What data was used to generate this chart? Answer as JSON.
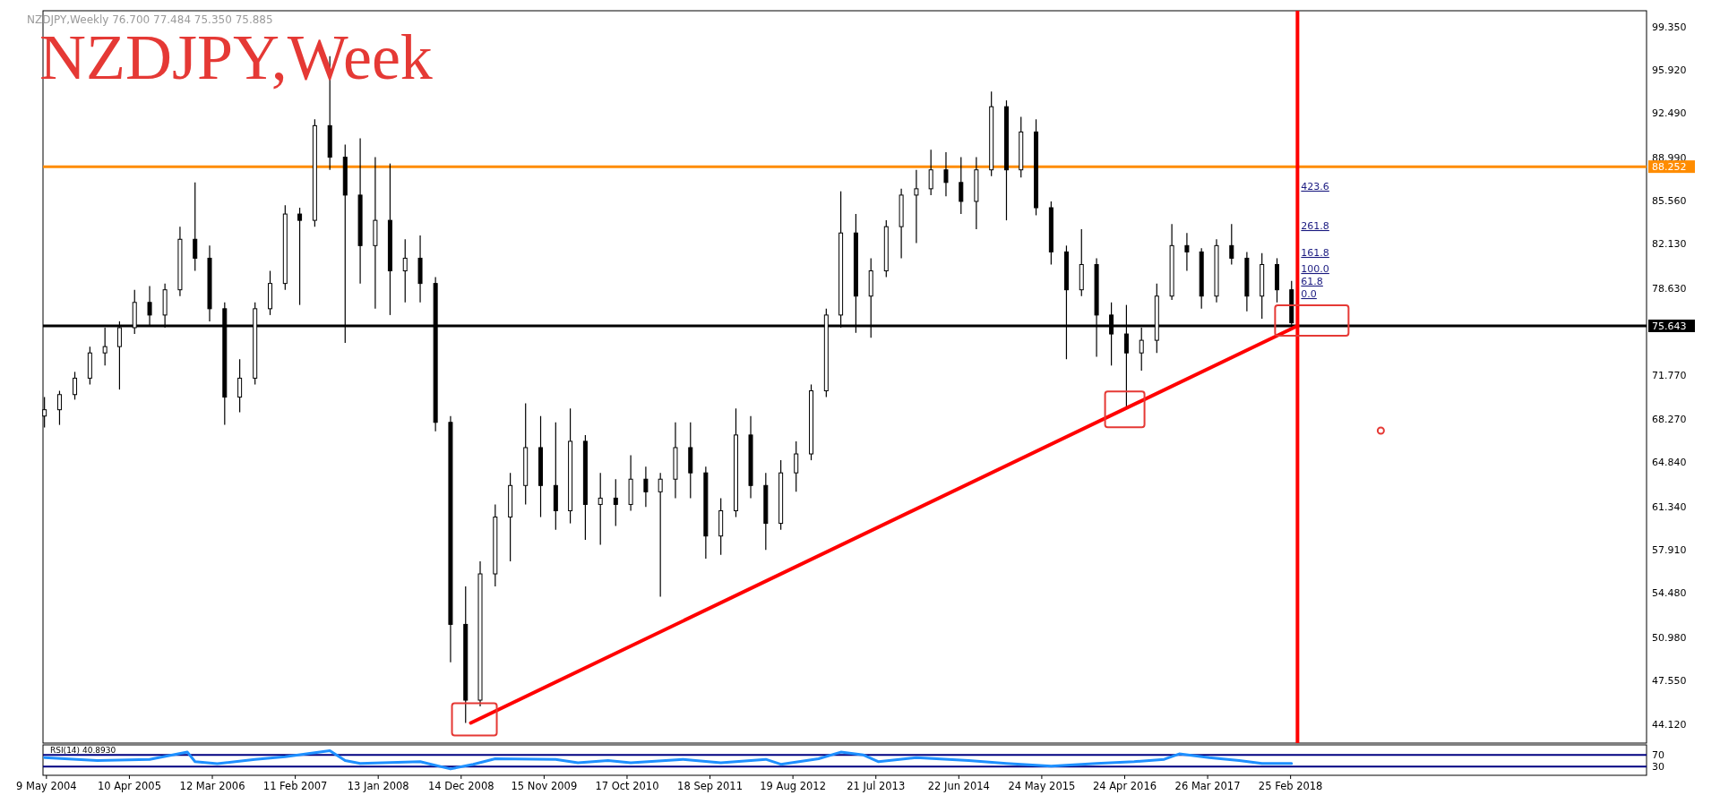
{
  "chart_data": [
    {
      "type": "candlestick",
      "title": "NZDJPY,Week",
      "subtitle": "NZDJPY,Weekly 76.700 77.484 75.350 75.885",
      "tick_labels": "y",
      "xlim": [
        "2004-04-25",
        "2022-02-06"
      ],
      "ylim": [
        42.6,
        100.6
      ],
      "yticks": [
        {
          "value": 44.12,
          "label": "44.120"
        },
        {
          "value": 47.55,
          "label": "47.550"
        },
        {
          "value": 50.98,
          "label": "50.980"
        },
        {
          "value": 54.48,
          "label": "54.480"
        },
        {
          "value": 57.91,
          "label": "57.910"
        },
        {
          "value": 61.34,
          "label": "61.340"
        },
        {
          "value": 64.84,
          "label": "64.840"
        },
        {
          "value": 68.27,
          "label": "68.270"
        },
        {
          "value": 71.77,
          "label": "71.770"
        },
        {
          "value": 78.63,
          "label": "78.630"
        },
        {
          "value": 82.13,
          "label": "82.130"
        },
        {
          "value": 85.56,
          "label": "85.560"
        },
        {
          "value": 88.99,
          "label": "88.990"
        },
        {
          "value": 92.49,
          "label": "92.490"
        },
        {
          "value": 95.92,
          "label": "95.920"
        },
        {
          "value": 99.35,
          "label": "99.350"
        }
      ],
      "x": [
        "2004-05",
        "2004-07",
        "2004-09",
        "2004-11",
        "2005-01",
        "2005-03",
        "2005-05",
        "2005-07",
        "2005-09",
        "2005-11",
        "2006-01",
        "2006-03",
        "2006-05",
        "2006-07",
        "2006-09",
        "2006-11",
        "2007-01",
        "2007-03",
        "2007-05",
        "2007-07",
        "2007-09",
        "2007-11",
        "2008-01",
        "2008-03",
        "2008-05",
        "2008-07",
        "2008-09",
        "2008-11",
        "2009-01",
        "2009-03",
        "2009-05",
        "2009-07",
        "2009-09",
        "2009-11",
        "2010-01",
        "2010-03",
        "2010-05",
        "2010-07",
        "2010-09",
        "2010-11",
        "2011-01",
        "2011-03",
        "2011-05",
        "2011-07",
        "2011-09",
        "2011-11",
        "2012-01",
        "2012-03",
        "2012-05",
        "2012-07",
        "2012-09",
        "2012-11",
        "2013-01",
        "2013-03",
        "2013-05",
        "2013-07",
        "2013-09",
        "2013-11",
        "2014-01",
        "2014-03",
        "2014-05",
        "2014-07",
        "2014-09",
        "2014-11",
        "2015-01",
        "2015-03",
        "2015-05",
        "2015-07",
        "2015-09",
        "2015-11",
        "2016-01",
        "2016-03",
        "2016-05",
        "2016-07",
        "2016-09",
        "2016-11",
        "2017-01",
        "2017-03",
        "2017-05",
        "2017-07",
        "2017-09",
        "2017-11",
        "2018-01",
        "2018-03"
      ],
      "ohlc": [
        [
          68.5,
          70.0,
          67.6,
          69.0
        ],
        [
          69.0,
          70.5,
          67.8,
          70.2
        ],
        [
          70.2,
          72.0,
          69.8,
          71.5
        ],
        [
          71.5,
          74.0,
          71.0,
          73.5
        ],
        [
          73.5,
          75.5,
          72.5,
          74.0
        ],
        [
          74.0,
          76.0,
          70.6,
          75.5
        ],
        [
          75.5,
          78.5,
          75.0,
          77.5
        ],
        [
          77.5,
          78.8,
          75.6,
          76.5
        ],
        [
          76.5,
          79.0,
          75.5,
          78.5
        ],
        [
          78.5,
          83.5,
          78.0,
          82.5
        ],
        [
          82.5,
          87.0,
          80.0,
          81.0
        ],
        [
          81.0,
          82.0,
          76.0,
          77.0
        ],
        [
          77.0,
          77.5,
          67.8,
          70.0
        ],
        [
          70.0,
          73.0,
          68.8,
          71.5
        ],
        [
          71.5,
          77.5,
          71.0,
          77.0
        ],
        [
          77.0,
          80.0,
          76.5,
          79.0
        ],
        [
          79.0,
          85.2,
          78.5,
          84.5
        ],
        [
          84.5,
          85.0,
          77.3,
          84.0
        ],
        [
          84.0,
          92.0,
          83.5,
          91.5
        ],
        [
          91.5,
          97.0,
          88.0,
          89.0
        ],
        [
          89.0,
          90.0,
          74.3,
          86.0
        ],
        [
          86.0,
          90.5,
          79.0,
          82.0
        ],
        [
          82.0,
          89.0,
          77.0,
          84.0
        ],
        [
          84.0,
          88.5,
          76.5,
          80.0
        ],
        [
          80.0,
          82.5,
          77.5,
          81.0
        ],
        [
          81.0,
          82.8,
          77.5,
          79.0
        ],
        [
          79.0,
          79.5,
          67.3,
          68.0
        ],
        [
          68.0,
          68.5,
          49.0,
          52.0
        ],
        [
          52.0,
          55.0,
          44.2,
          46.0
        ],
        [
          46.0,
          57.0,
          45.5,
          56.0
        ],
        [
          56.0,
          61.5,
          55.0,
          60.5
        ],
        [
          60.5,
          64.0,
          57.0,
          63.0
        ],
        [
          63.0,
          69.5,
          61.5,
          66.0
        ],
        [
          66.0,
          68.5,
          60.5,
          63.0
        ],
        [
          63.0,
          68.0,
          59.5,
          61.0
        ],
        [
          61.0,
          69.1,
          60.0,
          66.5
        ],
        [
          66.5,
          67.0,
          58.7,
          61.5
        ],
        [
          61.5,
          64.0,
          58.3,
          62.0
        ],
        [
          62.0,
          63.5,
          59.8,
          61.5
        ],
        [
          61.5,
          65.4,
          61.0,
          63.5
        ],
        [
          63.5,
          64.5,
          61.3,
          62.5
        ],
        [
          62.5,
          64.0,
          54.2,
          63.5
        ],
        [
          63.5,
          68.0,
          62.0,
          66.0
        ],
        [
          66.0,
          68.0,
          62.0,
          64.0
        ],
        [
          64.0,
          64.5,
          57.2,
          59.0
        ],
        [
          59.0,
          62.0,
          57.5,
          61.0
        ],
        [
          61.0,
          69.1,
          60.5,
          67.0
        ],
        [
          67.0,
          68.5,
          62.0,
          63.0
        ],
        [
          63.0,
          64.0,
          57.9,
          60.0
        ],
        [
          60.0,
          65.0,
          59.5,
          64.0
        ],
        [
          64.0,
          66.5,
          62.5,
          65.5
        ],
        [
          65.5,
          71.0,
          65.0,
          70.5
        ],
        [
          70.5,
          77.0,
          70.0,
          76.5
        ],
        [
          76.5,
          86.3,
          75.5,
          83.0
        ],
        [
          83.0,
          84.5,
          75.1,
          78.0
        ],
        [
          78.0,
          81.0,
          74.7,
          80.0
        ],
        [
          80.0,
          84.0,
          79.5,
          83.5
        ],
        [
          83.5,
          86.5,
          81.0,
          86.0
        ],
        [
          86.0,
          88.0,
          82.2,
          86.5
        ],
        [
          86.5,
          89.6,
          86.0,
          88.0
        ],
        [
          88.0,
          89.4,
          85.9,
          87.0
        ],
        [
          87.0,
          89.0,
          84.5,
          85.5
        ],
        [
          85.5,
          89.0,
          83.3,
          88.0
        ],
        [
          88.0,
          94.2,
          87.5,
          93.0
        ],
        [
          93.0,
          93.5,
          84.0,
          88.0
        ],
        [
          88.0,
          92.2,
          87.4,
          91.0
        ],
        [
          91.0,
          92.0,
          84.4,
          85.0
        ],
        [
          85.0,
          85.5,
          80.5,
          81.5
        ],
        [
          81.5,
          82.0,
          73.0,
          78.5
        ],
        [
          78.5,
          83.3,
          78.0,
          80.5
        ],
        [
          80.5,
          81.0,
          73.2,
          76.5
        ],
        [
          76.5,
          77.5,
          72.5,
          75.0
        ],
        [
          75.0,
          77.3,
          69.1,
          73.5
        ],
        [
          73.5,
          75.5,
          72.1,
          74.5
        ],
        [
          74.5,
          79.0,
          73.5,
          78.0
        ],
        [
          78.0,
          83.7,
          77.7,
          82.0
        ],
        [
          82.0,
          83.0,
          80.0,
          81.5
        ],
        [
          81.5,
          81.8,
          77.0,
          78.0
        ],
        [
          78.0,
          82.5,
          77.5,
          82.0
        ],
        [
          82.0,
          83.7,
          80.5,
          81.0
        ],
        [
          81.0,
          81.5,
          76.8,
          78.0
        ],
        [
          78.0,
          81.4,
          76.2,
          80.5
        ],
        [
          80.5,
          81.0,
          77.5,
          78.5
        ],
        [
          78.5,
          79.2,
          75.35,
          75.885
        ]
      ],
      "series": [
        {
          "type": "line",
          "x": [
            "2009-01-22",
            "2018-03-25"
          ],
          "values": [
            44.2,
            75.64
          ],
          "color": "#ff0000"
        }
      ],
      "ref_lines": [
        {
          "axis": "y",
          "value": 88.252,
          "label": "88.252",
          "color": "#ff8c00"
        },
        {
          "axis": "y",
          "value": 75.643,
          "label": "75.643",
          "color": "#000000"
        },
        {
          "axis": "x",
          "value": "2018-03-25",
          "color": "#ff0000"
        }
      ],
      "annotations": [
        "423.6",
        "261.8",
        "161.8",
        "100.0",
        "61.8",
        "0.0"
      ]
    },
    {
      "type": "line",
      "title": "RSI(14) 40.8930",
      "xlim": [
        "2004-04-25",
        "2022-02-06"
      ],
      "xticks": [
        {
          "value": "2004-05-09",
          "label": "9 May 2004"
        },
        {
          "value": "2005-04-10",
          "label": "10 Apr 2005"
        },
        {
          "value": "2006-03-12",
          "label": "12 Mar 2006"
        },
        {
          "value": "2007-02-11",
          "label": "11 Feb 2007"
        },
        {
          "value": "2008-01-13",
          "label": "13 Jan 2008"
        },
        {
          "value": "2008-12-14",
          "label": "14 Dec 2008"
        },
        {
          "value": "2009-11-15",
          "label": "15 Nov 2009"
        },
        {
          "value": "2010-10-17",
          "label": "17 Oct 2010"
        },
        {
          "value": "2011-09-18",
          "label": "18 Sep 2011"
        },
        {
          "value": "2012-08-19",
          "label": "19 Aug 2012"
        },
        {
          "value": "2013-07-21",
          "label": "21 Jul 2013"
        },
        {
          "value": "2014-06-22",
          "label": "22 Jun 2014"
        },
        {
          "value": "2015-05-24",
          "label": "24 May 2015"
        },
        {
          "value": "2016-04-24",
          "label": "24 Apr 2016"
        },
        {
          "value": "2017-03-26",
          "label": "26 Mar 2017"
        },
        {
          "value": "2018-02-25",
          "label": "25 Feb 2018"
        }
      ],
      "ylim": [
        0,
        105
      ],
      "yticks": [
        70,
        30
      ],
      "ref_lines": [
        {
          "axis": "y",
          "value": 70,
          "color": "#000080"
        },
        {
          "axis": "y",
          "value": 30,
          "color": "#000080"
        }
      ],
      "series": [
        {
          "color": "#1e90ff",
          "x": [
            "2004-05",
            "2004-12",
            "2005-07",
            "2005-12",
            "2006-01",
            "2006-04",
            "2006-09",
            "2007-01",
            "2007-07",
            "2007-09",
            "2007-11",
            "2008-07",
            "2008-11",
            "2009-02",
            "2009-05",
            "2010-01",
            "2010-04",
            "2010-08",
            "2010-11",
            "2011-06",
            "2011-11",
            "2012-05",
            "2012-07",
            "2012-12",
            "2013-03",
            "2013-06",
            "2013-08",
            "2014-01",
            "2014-08",
            "2015-01",
            "2015-07",
            "2016-01",
            "2016-06",
            "2016-10",
            "2016-12",
            "2017-04",
            "2017-08",
            "2017-11",
            "2018-03"
          ],
          "values": [
            61,
            51,
            55,
            80,
            47,
            40,
            55,
            64,
            85,
            51,
            41,
            47,
            22,
            38,
            57,
            55,
            43,
            51,
            43,
            55,
            43,
            55,
            38,
            57,
            80,
            70,
            47,
            61,
            51,
            41,
            32,
            41,
            47,
            55,
            74,
            61,
            51,
            41,
            41
          ]
        }
      ]
    }
  ]
}
